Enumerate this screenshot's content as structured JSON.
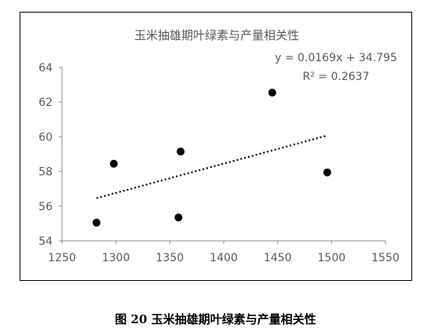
{
  "caption": "图 20 玉米抽雄期叶绿素与产量相关性",
  "chart_data": {
    "type": "scatter",
    "title": "玉米抽雄期叶绿素与产量相关性",
    "xlabel": "",
    "ylabel": "",
    "xlim": [
      1250,
      1550
    ],
    "ylim": [
      54,
      64
    ],
    "xticks": [
      "1250",
      "1300",
      "1350",
      "1400",
      "1450",
      "1500",
      "1550"
    ],
    "yticks": [
      "54",
      "56",
      "58",
      "60",
      "62",
      "64"
    ],
    "grid": false,
    "legend": "none",
    "series": [
      {
        "x": [
          1282,
          1298,
          1358,
          1360,
          1445,
          1496
        ],
        "y": [
          55.05,
          58.45,
          55.35,
          59.15,
          62.55,
          57.95
        ]
      }
    ],
    "trendline": {
      "type": "linear",
      "x_range": [
        1282,
        1496
      ],
      "equation": "y = 0.0169x + 34.795",
      "r_squared": "R² = 0.2637",
      "style": "dotted"
    },
    "colors": {
      "marker": "#000000",
      "axis": "#8c8c8c",
      "text": "#595959"
    }
  }
}
